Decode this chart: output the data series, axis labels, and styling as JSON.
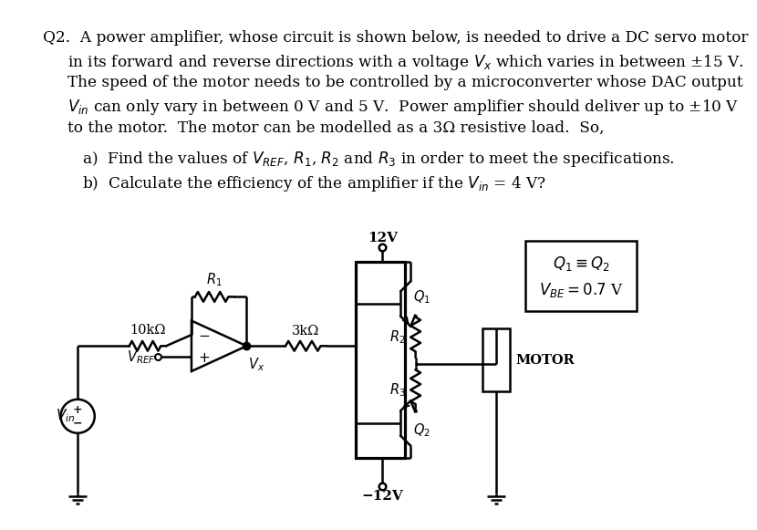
{
  "bg_color": "#ffffff",
  "text_color": "#000000",
  "line_color": "#000000",
  "fig_width": 9.16,
  "fig_height": 7.29,
  "title_text": "Q2.  A power amplifier, whose circuit is shown below, is needed to drive a DC servo motor",
  "line2": "in its forward and reverse directions with a voltage $V_x$ which varies in between ±15 V.",
  "line3": "The speed of the motor needs to be controlled by a microconverter whose DAC output",
  "line4": "$V_{in}$ can only vary in between 0 V and 5 V.  Power amplifier should deliver up to ±10 V",
  "line5": "to the motor.  The motor can be modelled as a 3Ω resistive load.  So,",
  "line_a": "a)  Find the values of $V_{REF}$, $R_1$, $R_2$ and $R_3$ in order to meet the specifications.",
  "line_b": "b)  Calculate the efficiency of the amplifier if the $V_{in}$ = 4 V?",
  "box_label1": "$Q_1 \\equiv Q_2$",
  "box_label2": "$V_{BE} = 0.7$ V"
}
